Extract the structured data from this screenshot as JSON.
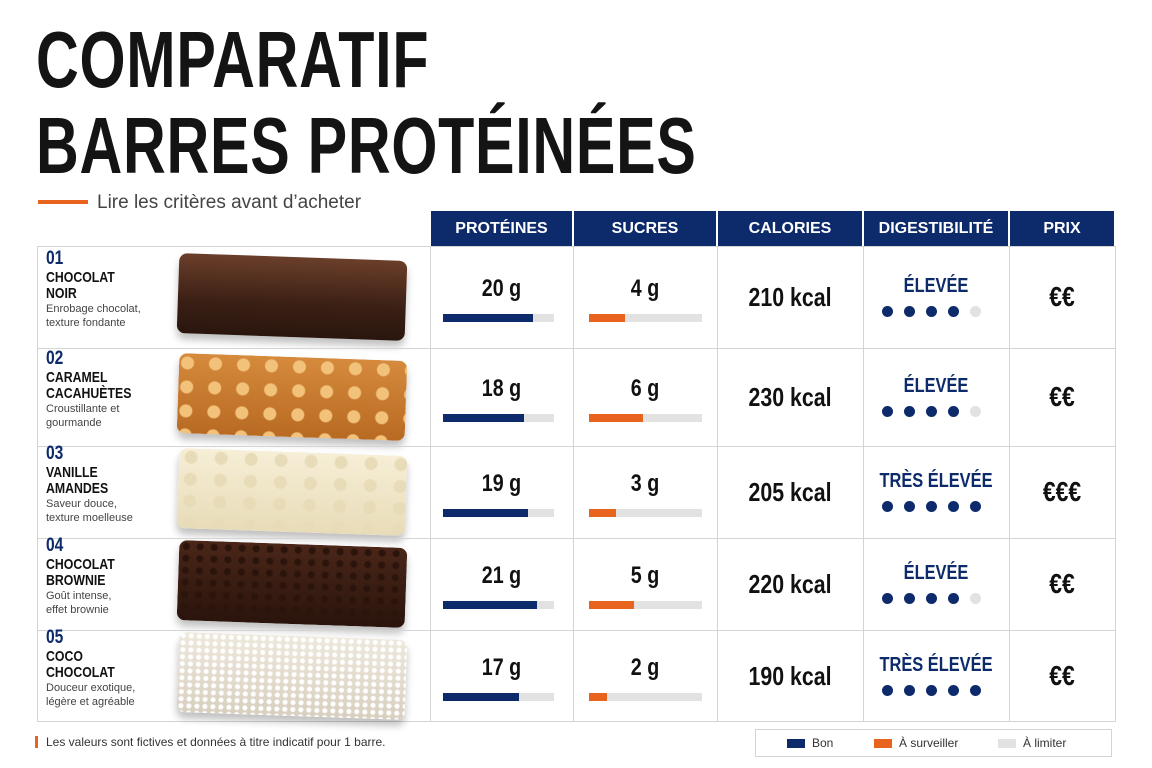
{
  "header": {
    "title_line1": "COMPARATIF",
    "title_line2": "BARRES PROTÉINÉES",
    "subtitle": "Lire les critères avant d’acheter"
  },
  "table": {
    "columns": [
      "PROTÉINES",
      "SUCRES",
      "CALORIES",
      "DIGESTIBILITÉ",
      "PRIX"
    ],
    "dots_total": 5,
    "rows": [
      {
        "number": "01",
        "name_lines": [
          "CHOCOLAT",
          "NOIR"
        ],
        "description_lines": [
          "Enrobage chocolat,",
          "texture fondante"
        ],
        "protein": 20,
        "protein_label": "20 g",
        "sugar": 4,
        "sugar_label": "4 g",
        "calories": "210 kcal",
        "digestibility": "ÉLEVÉE",
        "dots": 4,
        "price": "€€"
      },
      {
        "number": "02",
        "name_lines": [
          "CARAMEL",
          "CACAHUÈTES"
        ],
        "description_lines": [
          "Croustillante et",
          "gourmande"
        ],
        "protein": 18,
        "protein_label": "18 g",
        "sugar": 6,
        "sugar_label": "6 g",
        "calories": "230 kcal",
        "digestibility": "ÉLEVÉE",
        "dots": 4,
        "price": "€€"
      },
      {
        "number": "03",
        "name_lines": [
          "VANILLE",
          "AMANDES"
        ],
        "description_lines": [
          "Saveur douce,",
          "texture moelleuse"
        ],
        "protein": 19,
        "protein_label": "19 g",
        "sugar": 3,
        "sugar_label": "3 g",
        "calories": "205 kcal",
        "digestibility": "TRÈS ÉLEVÉE",
        "dots": 5,
        "price": "€€€"
      },
      {
        "number": "04",
        "name_lines": [
          "CHOCOLAT",
          "BROWNIE"
        ],
        "description_lines": [
          "Goût intense,",
          "effet brownie"
        ],
        "protein": 21,
        "protein_label": "21 g",
        "sugar": 5,
        "sugar_label": "5 g",
        "calories": "220 kcal",
        "digestibility": "ÉLEVÉE",
        "dots": 4,
        "price": "€€"
      },
      {
        "number": "05",
        "name_lines": [
          "COCO",
          "CHOCOLAT"
        ],
        "description_lines": [
          "Douceur exotique,",
          "légère et agréable"
        ],
        "protein": 17,
        "protein_label": "17 g",
        "sugar": 2,
        "sugar_label": "2 g",
        "calories": "190 kcal",
        "digestibility": "TRÈS ÉLEVÉE",
        "dots": 5,
        "price": "€€"
      }
    ]
  },
  "footer": {
    "note": "Les valeurs sont fictives et données à titre indicatif pour 1 barre.",
    "legend": [
      "Bon",
      "À surveiller",
      "À limiter"
    ]
  }
}
